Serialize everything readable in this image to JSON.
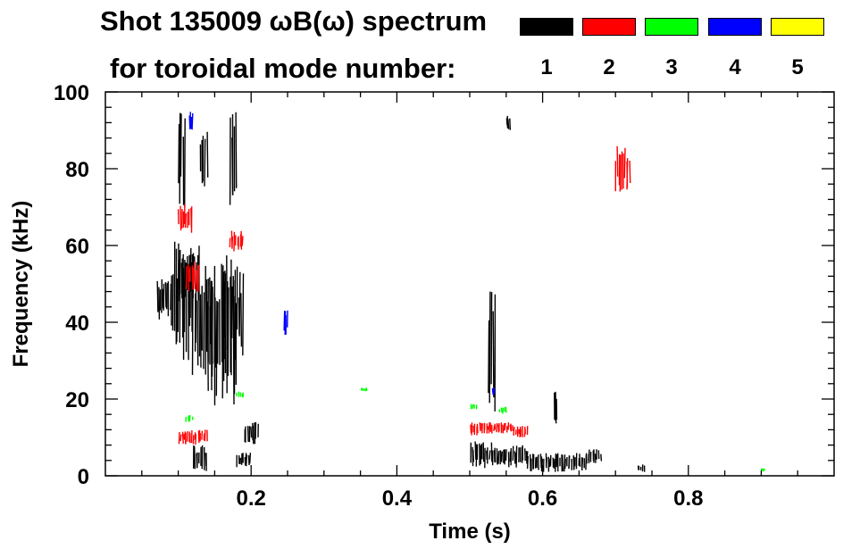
{
  "chart_data": {
    "type": "scatter",
    "title": "Shot 135009 ωB(ω) spectrum",
    "subtitle": "for toroidal mode number:",
    "xlabel": "Time (s)",
    "ylabel": "Frequency (kHz)",
    "xlim": [
      0.0,
      1.0
    ],
    "ylim": [
      0,
      100
    ],
    "x_ticks": [
      0.2,
      0.4,
      0.6,
      0.8
    ],
    "x_tick_labels": [
      "0.2",
      "0.4",
      "0.6",
      "0.8"
    ],
    "y_ticks": [
      0,
      20,
      40,
      60,
      80,
      100
    ],
    "y_tick_labels": [
      "0",
      "20",
      "40",
      "60",
      "80",
      "100"
    ],
    "grid": false,
    "legend_placement": "top-right",
    "series": [
      {
        "label": "1",
        "color": "#000000",
        "segments": [
          [
            0.07,
            0.09,
            40,
            52
          ],
          [
            0.09,
            0.12,
            30,
            62
          ],
          [
            0.1,
            0.13,
            45,
            60
          ],
          [
            0.12,
            0.15,
            25,
            55
          ],
          [
            0.14,
            0.18,
            18,
            58
          ],
          [
            0.16,
            0.19,
            30,
            55
          ],
          [
            0.1,
            0.11,
            70,
            97
          ],
          [
            0.13,
            0.14,
            75,
            90
          ],
          [
            0.17,
            0.18,
            70,
            95
          ],
          [
            0.19,
            0.21,
            8,
            14
          ],
          [
            0.18,
            0.2,
            2,
            6
          ],
          [
            0.12,
            0.14,
            1,
            8
          ],
          [
            0.5,
            0.53,
            2,
            9
          ],
          [
            0.53,
            0.58,
            2,
            8
          ],
          [
            0.58,
            0.66,
            1,
            6
          ],
          [
            0.66,
            0.68,
            3,
            7
          ],
          [
            0.525,
            0.535,
            10,
            52
          ],
          [
            0.55,
            0.555,
            90,
            94
          ],
          [
            0.615,
            0.62,
            13,
            22
          ],
          [
            0.73,
            0.74,
            1,
            3
          ]
        ]
      },
      {
        "label": "2",
        "color": "#ff0000",
        "segments": [
          [
            0.1,
            0.12,
            63,
            71
          ],
          [
            0.11,
            0.13,
            48,
            56
          ],
          [
            0.17,
            0.19,
            58,
            64
          ],
          [
            0.5,
            0.51,
            10,
            14
          ],
          [
            0.51,
            0.56,
            11,
            14
          ],
          [
            0.56,
            0.58,
            10,
            13
          ],
          [
            0.7,
            0.72,
            74,
            86
          ],
          [
            0.1,
            0.14,
            8,
            12
          ]
        ]
      },
      {
        "label": "3",
        "color": "#00ff00",
        "segments": [
          [
            0.5,
            0.51,
            17,
            19
          ],
          [
            0.54,
            0.55,
            16,
            18
          ],
          [
            0.11,
            0.12,
            14,
            16
          ],
          [
            0.18,
            0.19,
            20,
            22
          ],
          [
            0.35,
            0.36,
            22,
            23
          ],
          [
            0.9,
            0.905,
            1,
            2
          ]
        ]
      },
      {
        "label": "4",
        "color": "#0000ff",
        "segments": [
          [
            0.245,
            0.25,
            36,
            44
          ],
          [
            0.115,
            0.12,
            90,
            95
          ],
          [
            0.53,
            0.535,
            21,
            23
          ]
        ]
      },
      {
        "label": "5",
        "color": "#ffff00",
        "segments": []
      }
    ]
  }
}
